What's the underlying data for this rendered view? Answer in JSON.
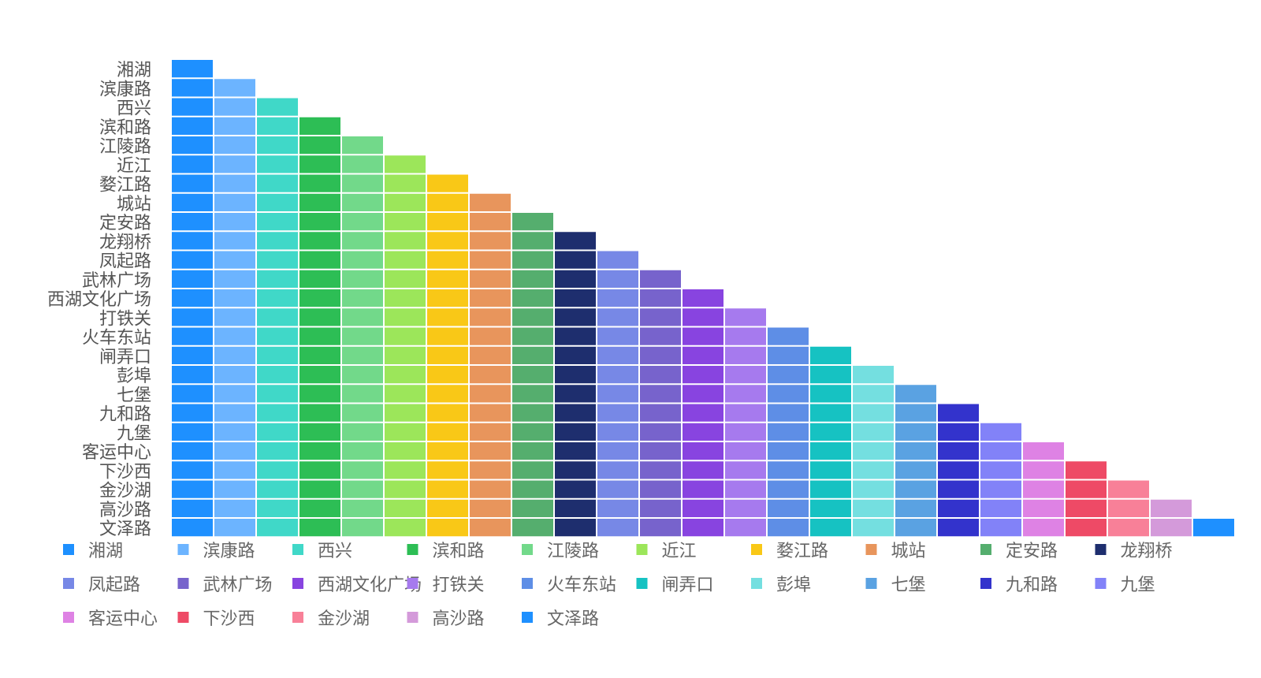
{
  "chart_data": {
    "type": "heatmap",
    "title": "",
    "xlabel": "",
    "ylabel": "",
    "grid": false,
    "legend_position": "bottom",
    "stations": [
      "湘湖",
      "滨康路",
      "西兴",
      "滨和路",
      "江陵路",
      "近江",
      "婺江路",
      "城站",
      "定安路",
      "龙翔桥",
      "凤起路",
      "武林广场",
      "西湖文化广场",
      "打铁关",
      "火车东站",
      "闸弄口",
      "彭埠",
      "七堡",
      "九和路",
      "九堡",
      "客运中心",
      "下沙西",
      "金沙湖",
      "高沙路",
      "文泽路"
    ],
    "colors": [
      "#1E90FF",
      "#6CB4FF",
      "#40D8C8",
      "#2DBE55",
      "#72D98A",
      "#9CE65A",
      "#F9C817",
      "#E8955C",
      "#55AE6E",
      "#1E2E6E",
      "#7788E6",
      "#7763CC",
      "#8844E0",
      "#A67AEE",
      "#5E8EE6",
      "#16C2C2",
      "#74DFE0",
      "#5AA2E2",
      "#3333CC",
      "#8282F8",
      "#DE82E4",
      "#EE4A66",
      "#F88098",
      "#D49ADA",
      "#1E90FF"
    ],
    "rows": [
      {
        "station": "湘湖",
        "cells": [
          1
        ]
      },
      {
        "station": "滨康路",
        "cells": [
          1,
          1
        ]
      },
      {
        "station": "西兴",
        "cells": [
          1,
          1,
          1
        ]
      },
      {
        "station": "滨和路",
        "cells": [
          1,
          1,
          1,
          1
        ]
      },
      {
        "station": "江陵路",
        "cells": [
          1,
          1,
          1,
          1,
          1
        ]
      },
      {
        "station": "近江",
        "cells": [
          1,
          1,
          1,
          1,
          1,
          1
        ]
      },
      {
        "station": "婺江路",
        "cells": [
          1,
          1,
          1,
          1,
          1,
          1,
          1
        ]
      },
      {
        "station": "城站",
        "cells": [
          1,
          1,
          1,
          1,
          1,
          1,
          1,
          1
        ]
      },
      {
        "station": "定安路",
        "cells": [
          1,
          1,
          1,
          1,
          1,
          1,
          1,
          1,
          1
        ]
      },
      {
        "station": "龙翔桥",
        "cells": [
          1,
          1,
          1,
          1,
          1,
          1,
          1,
          1,
          1,
          1
        ]
      },
      {
        "station": "凤起路",
        "cells": [
          1,
          1,
          1,
          1,
          1,
          1,
          1,
          1,
          1,
          1,
          1
        ]
      },
      {
        "station": "武林广场",
        "cells": [
          1,
          1,
          1,
          1,
          1,
          1,
          1,
          1,
          1,
          1,
          1,
          1
        ]
      },
      {
        "station": "西湖文化广场",
        "cells": [
          1,
          1,
          1,
          1,
          1,
          1,
          1,
          1,
          1,
          1,
          1,
          1,
          1
        ]
      },
      {
        "station": "打铁关",
        "cells": [
          1,
          1,
          1,
          1,
          1,
          1,
          1,
          1,
          1,
          1,
          1,
          1,
          1,
          1
        ]
      },
      {
        "station": "火车东站",
        "cells": [
          1,
          1,
          1,
          1,
          1,
          1,
          1,
          1,
          1,
          1,
          1,
          1,
          1,
          1,
          1
        ]
      },
      {
        "station": "闸弄口",
        "cells": [
          1,
          1,
          1,
          1,
          1,
          1,
          1,
          1,
          1,
          1,
          1,
          1,
          1,
          1,
          1,
          1
        ]
      },
      {
        "station": "彭埠",
        "cells": [
          1,
          1,
          1,
          1,
          1,
          1,
          1,
          1,
          1,
          1,
          1,
          1,
          1,
          1,
          1,
          1,
          1
        ]
      },
      {
        "station": "七堡",
        "cells": [
          1,
          1,
          1,
          1,
          1,
          1,
          1,
          1,
          1,
          1,
          1,
          1,
          1,
          1,
          1,
          1,
          1,
          1
        ]
      },
      {
        "station": "九和路",
        "cells": [
          1,
          1,
          1,
          1,
          1,
          1,
          1,
          1,
          1,
          1,
          1,
          1,
          1,
          1,
          1,
          1,
          1,
          1,
          1
        ]
      },
      {
        "station": "九堡",
        "cells": [
          1,
          1,
          1,
          1,
          1,
          1,
          1,
          1,
          1,
          1,
          1,
          1,
          1,
          1,
          1,
          1,
          1,
          1,
          1,
          1
        ]
      },
      {
        "station": "客运中心",
        "cells": [
          1,
          1,
          1,
          1,
          1,
          1,
          1,
          1,
          1,
          1,
          1,
          1,
          1,
          1,
          1,
          1,
          1,
          1,
          1,
          1,
          1
        ]
      },
      {
        "station": "下沙西",
        "cells": [
          1,
          1,
          1,
          1,
          1,
          1,
          1,
          1,
          1,
          1,
          1,
          1,
          1,
          1,
          1,
          1,
          1,
          1,
          1,
          1,
          1,
          1
        ]
      },
      {
        "station": "金沙湖",
        "cells": [
          1,
          1,
          1,
          1,
          1,
          1,
          1,
          1,
          1,
          1,
          1,
          1,
          1,
          1,
          1,
          1,
          1,
          1,
          1,
          1,
          1,
          1,
          1
        ]
      },
      {
        "station": "高沙路",
        "cells": [
          1,
          1,
          1,
          1,
          1,
          1,
          1,
          1,
          1,
          1,
          1,
          1,
          1,
          1,
          1,
          1,
          1,
          1,
          1,
          1,
          1,
          1,
          1,
          1
        ]
      },
      {
        "station": "文泽路",
        "cells": [
          1,
          1,
          1,
          1,
          1,
          1,
          1,
          1,
          1,
          1,
          1,
          1,
          1,
          1,
          1,
          1,
          1,
          1,
          1,
          1,
          1,
          1,
          1,
          1,
          1
        ]
      }
    ]
  }
}
